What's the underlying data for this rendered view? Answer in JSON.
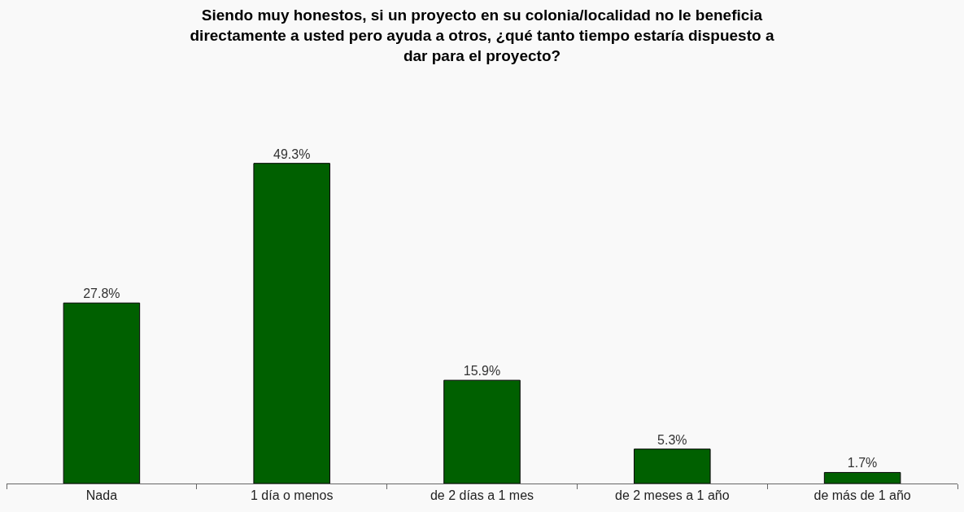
{
  "chart_data": {
    "type": "bar",
    "title": "Siendo muy honestos, si un proyecto en su colonia/localidad no le beneficia directamente a usted pero ayuda a otros, ¿qué tanto tiempo estaría dispuesto a dar para el proyecto?",
    "categories": [
      "Nada",
      "1 día o menos",
      "de 2 días a 1 mes",
      "de 2 meses a 1 año",
      "de más de 1 año"
    ],
    "values": [
      27.8,
      49.3,
      15.9,
      5.3,
      1.7
    ],
    "value_labels": [
      "27.8%",
      "49.3%",
      "15.9%",
      "5.3%",
      "1.7%"
    ],
    "color": "#006000"
  }
}
